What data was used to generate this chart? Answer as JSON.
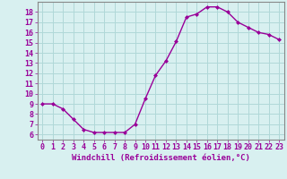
{
  "x": [
    0,
    1,
    2,
    3,
    4,
    5,
    6,
    7,
    8,
    9,
    10,
    11,
    12,
    13,
    14,
    15,
    16,
    17,
    18,
    19,
    20,
    21,
    22,
    23
  ],
  "y": [
    9.0,
    9.0,
    8.5,
    7.5,
    6.5,
    6.2,
    6.2,
    6.2,
    6.2,
    7.0,
    9.5,
    11.8,
    13.2,
    15.1,
    17.5,
    17.8,
    18.5,
    18.5,
    18.0,
    17.0,
    16.5,
    16.0,
    15.8,
    15.3
  ],
  "line_color": "#990099",
  "marker": "D",
  "marker_size": 2.0,
  "bg_color": "#d8f0f0",
  "grid_color": "#b0d8d8",
  "xlabel": "Windchill (Refroidissement éolien,°C)",
  "yticks": [
    6,
    7,
    8,
    9,
    10,
    11,
    12,
    13,
    14,
    15,
    16,
    17,
    18
  ],
  "xticks": [
    0,
    1,
    2,
    3,
    4,
    5,
    6,
    7,
    8,
    9,
    10,
    11,
    12,
    13,
    14,
    15,
    16,
    17,
    18,
    19,
    20,
    21,
    22,
    23
  ],
  "xlim": [
    -0.5,
    23.5
  ],
  "ylim": [
    5.5,
    19.0
  ],
  "xlabel_fontsize": 6.5,
  "tick_fontsize": 6.0,
  "tick_color": "#990099",
  "axis_color": "#888888",
  "linewidth": 1.0
}
